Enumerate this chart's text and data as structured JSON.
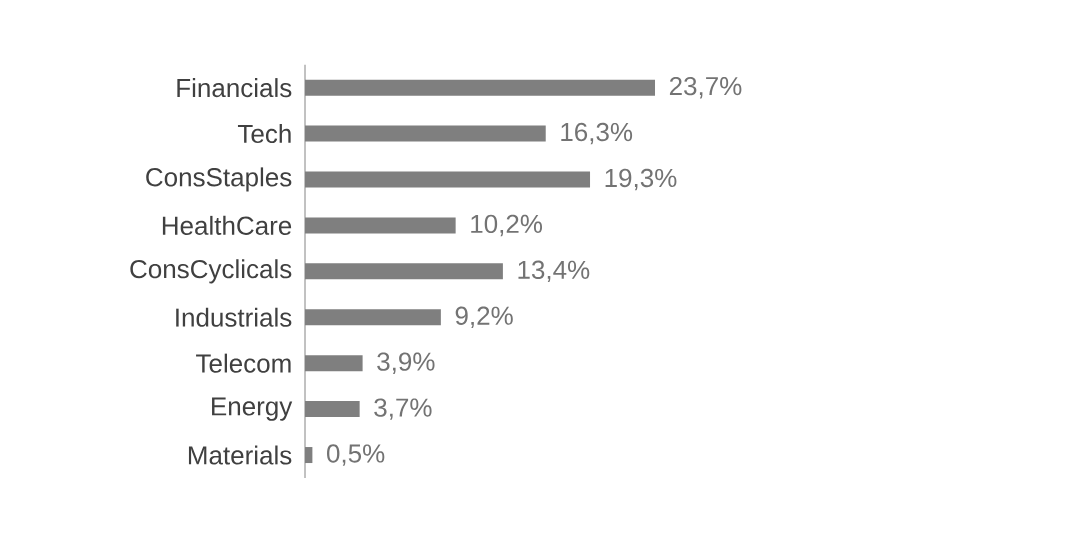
{
  "chart_data": {
    "type": "bar",
    "orientation": "horizontal",
    "categories": [
      "Financials",
      "Tech",
      "ConsStaples",
      "HealthCare",
      "ConsCyclicals",
      "Industrials",
      "Telecom",
      "Energy",
      "Materials"
    ],
    "values": [
      23.7,
      16.3,
      19.3,
      10.2,
      13.4,
      9.2,
      3.9,
      3.7,
      0.5
    ],
    "value_labels": [
      "23,7%",
      "16,3%",
      "19,3%",
      "10,2%",
      "13,4%",
      "9,2%",
      "3,9%",
      "3,7%",
      "0,5%"
    ],
    "color": "#7f7f7f"
  }
}
